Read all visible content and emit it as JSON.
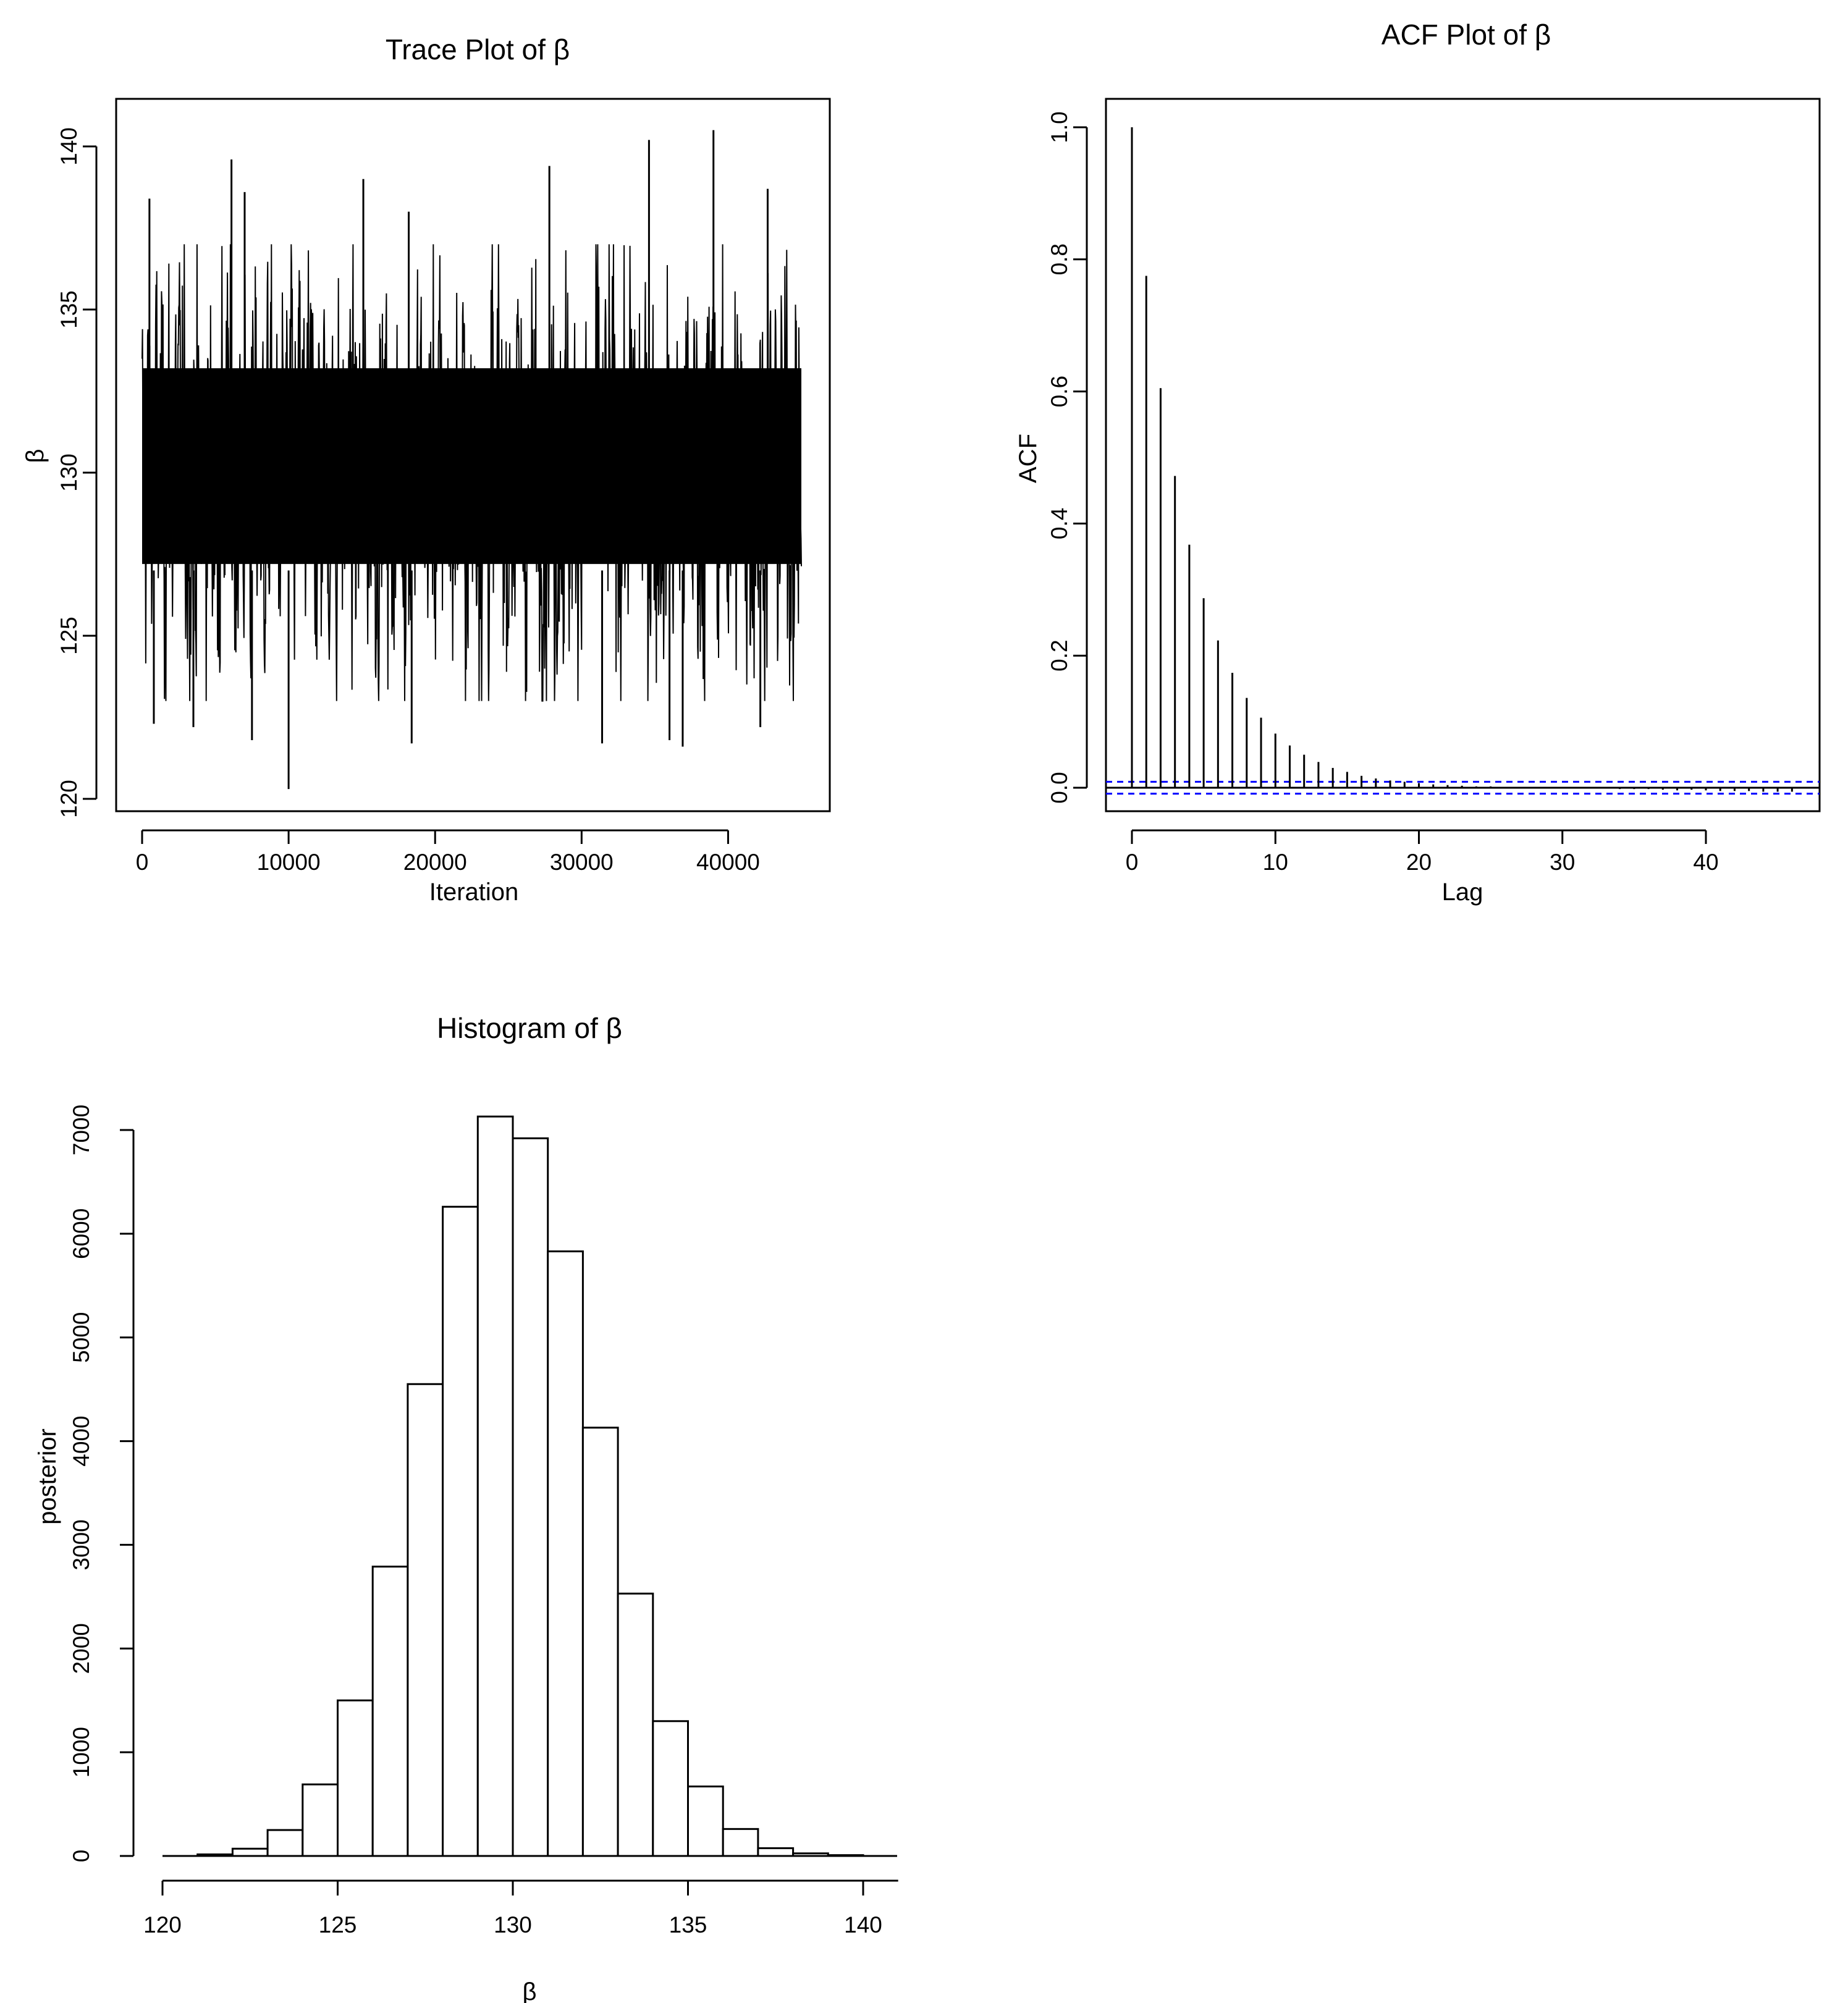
{
  "figure": {
    "colors": {
      "ink": "#000000",
      "background": "#ffffff",
      "ci_band": "#0000ff"
    }
  },
  "chart_data": [
    {
      "id": "trace",
      "type": "line",
      "title": "Trace Plot of β",
      "xlabel": "Iteration",
      "ylabel": "β",
      "xlim": [
        0,
        45000
      ],
      "ylim": [
        120,
        140.5
      ],
      "x_ticks": [
        0,
        10000,
        20000,
        30000,
        40000
      ],
      "x_tick_labels": [
        "0",
        "10000",
        "20000",
        "30000",
        "40000"
      ],
      "y_ticks": [
        120,
        125,
        130,
        135,
        140
      ],
      "y_tick_labels": [
        "120",
        "125",
        "130",
        "135",
        "140"
      ],
      "series": [
        {
          "n_iterations": 45000,
          "typical_range": [
            126.5,
            133.5
          ],
          "spikes": [
            {
              "x": 500,
              "y": 138.4
            },
            {
              "x": 6100,
              "y": 139.6
            },
            {
              "x": 7000,
              "y": 138.6
            },
            {
              "x": 15100,
              "y": 139.0
            },
            {
              "x": 18200,
              "y": 138.0
            },
            {
              "x": 27800,
              "y": 139.4
            },
            {
              "x": 34600,
              "y": 140.2
            },
            {
              "x": 39000,
              "y": 140.5
            },
            {
              "x": 42700,
              "y": 138.7
            },
            {
              "x": 10000,
              "y": 120.3
            },
            {
              "x": 18400,
              "y": 121.7
            },
            {
              "x": 7500,
              "y": 121.8
            },
            {
              "x": 31400,
              "y": 121.7
            },
            {
              "x": 36000,
              "y": 121.8
            },
            {
              "x": 36900,
              "y": 121.6
            },
            {
              "x": 800,
              "y": 122.3
            },
            {
              "x": 42200,
              "y": 122.2
            },
            {
              "x": 3500,
              "y": 122.2
            }
          ]
        }
      ]
    },
    {
      "id": "acf",
      "type": "bar",
      "title": "ACF Plot of β",
      "xlabel": "Lag",
      "ylabel": "ACF",
      "xlim": [
        0,
        47
      ],
      "ylim": [
        -0.035,
        1.0
      ],
      "x_ticks": [
        0,
        10,
        20,
        30,
        40
      ],
      "x_tick_labels": [
        "0",
        "10",
        "20",
        "30",
        "40"
      ],
      "y_ticks": [
        0.0,
        0.2,
        0.4,
        0.6,
        0.8,
        1.0
      ],
      "y_tick_labels": [
        "0.0",
        "0.2",
        "0.4",
        "0.6",
        "0.8",
        "1.0"
      ],
      "lags": [
        0,
        1,
        2,
        3,
        4,
        5,
        6,
        7,
        8,
        9,
        10,
        11,
        12,
        13,
        14,
        15,
        16,
        17,
        18,
        19,
        20,
        21,
        22,
        23,
        24,
        25,
        26,
        27,
        28,
        29,
        30,
        31,
        32,
        33,
        34,
        35,
        36,
        37,
        38,
        39,
        40,
        41,
        42,
        43,
        44,
        45,
        46
      ],
      "acf": [
        1.0,
        0.775,
        0.605,
        0.472,
        0.368,
        0.287,
        0.223,
        0.174,
        0.136,
        0.106,
        0.082,
        0.064,
        0.05,
        0.039,
        0.03,
        0.024,
        0.018,
        0.014,
        0.011,
        0.009,
        0.007,
        0.005,
        0.004,
        0.003,
        0.002,
        0.002,
        0.001,
        0.001,
        0.001,
        0.0,
        0.0,
        0.0,
        0.0,
        -0.001,
        -0.002,
        -0.002,
        -0.002,
        -0.003,
        -0.004,
        -0.003,
        -0.004,
        -0.005,
        -0.005,
        -0.005,
        -0.006,
        -0.006,
        -0.006
      ],
      "ci": [
        -0.009,
        0.009
      ]
    },
    {
      "id": "hist",
      "type": "bar",
      "title": "Histogram of β",
      "xlabel": "β",
      "ylabel": "posterior",
      "xlim": [
        120,
        141
      ],
      "ylim": [
        0,
        7200
      ],
      "x_ticks": [
        120,
        125,
        130,
        135,
        140
      ],
      "x_tick_labels": [
        "120",
        "125",
        "130",
        "135",
        "140"
      ],
      "y_ticks": [
        0,
        1000,
        2000,
        3000,
        4000,
        5000,
        6000,
        7000
      ],
      "y_tick_labels": [
        "0",
        "1000",
        "2000",
        "3000",
        "4000",
        "5000",
        "6000",
        "7000"
      ],
      "bin_width": 1,
      "bin_starts": [
        121,
        122,
        123,
        124,
        125,
        126,
        127,
        128,
        129,
        130,
        131,
        132,
        133,
        134,
        135,
        136,
        137,
        138,
        139
      ],
      "counts": [
        15,
        70,
        250,
        690,
        1500,
        2790,
        4550,
        6260,
        7130,
        6920,
        5830,
        4130,
        2530,
        1300,
        670,
        260,
        75,
        25,
        8
      ]
    }
  ]
}
